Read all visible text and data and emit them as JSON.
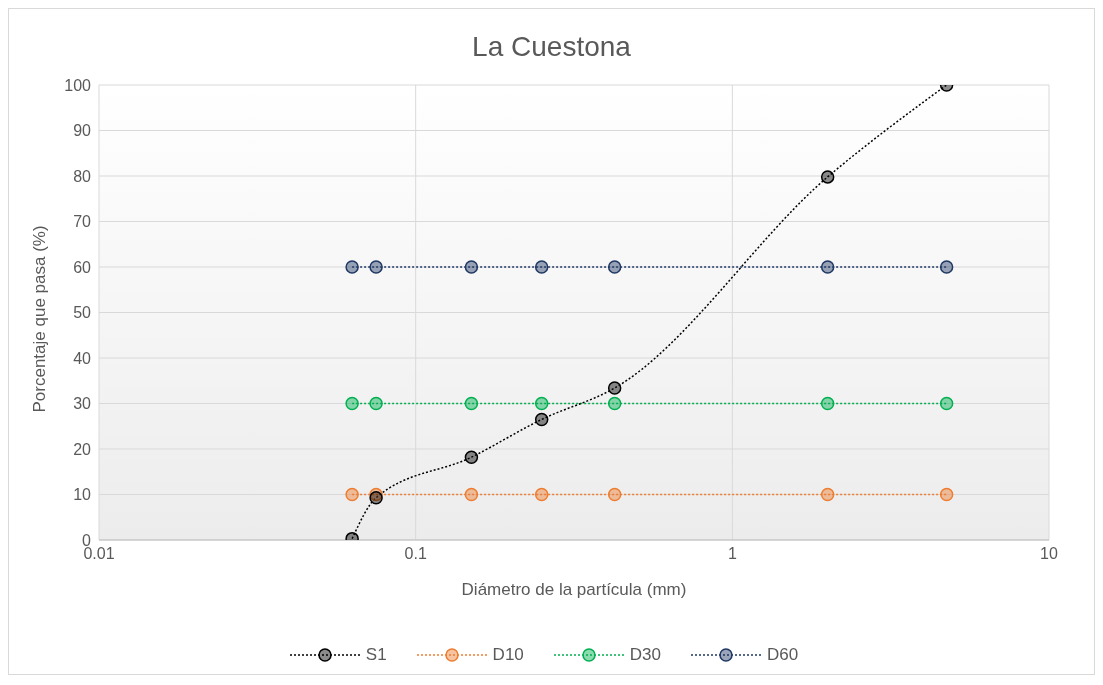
{
  "chart_data": {
    "type": "line",
    "title": "La Cuestona",
    "xlabel": "Diámetro de la partícula (mm)",
    "ylabel": "Porcentaje que pasa (%)",
    "x": [
      0.063,
      0.075,
      0.15,
      0.25,
      0.425,
      2,
      4.75
    ],
    "series": [
      {
        "name": "S1",
        "color": "#000000",
        "values": [
          0.3,
          9.3,
          18.2,
          26.5,
          33.4,
          79.8,
          100
        ]
      },
      {
        "name": "D10",
        "color": "#ed7d31",
        "values": [
          10,
          10,
          10,
          10,
          10,
          10,
          10
        ]
      },
      {
        "name": "D30",
        "color": "#00b050",
        "values": [
          30,
          30,
          30,
          30,
          30,
          30,
          30
        ]
      },
      {
        "name": "D60",
        "color": "#1f3864",
        "values": [
          60,
          60,
          60,
          60,
          60,
          60,
          60
        ]
      }
    ],
    "log": "x",
    "xlim": [
      0.01,
      10
    ],
    "xticks": [
      0.01,
      0.1,
      1,
      10
    ],
    "ylim": [
      0,
      100
    ],
    "yticks": [
      0,
      10,
      20,
      30,
      40,
      50,
      60,
      70,
      80,
      90,
      100
    ],
    "grid": true,
    "legend": "bottom",
    "marker": "circle",
    "line_style": "dotted"
  }
}
